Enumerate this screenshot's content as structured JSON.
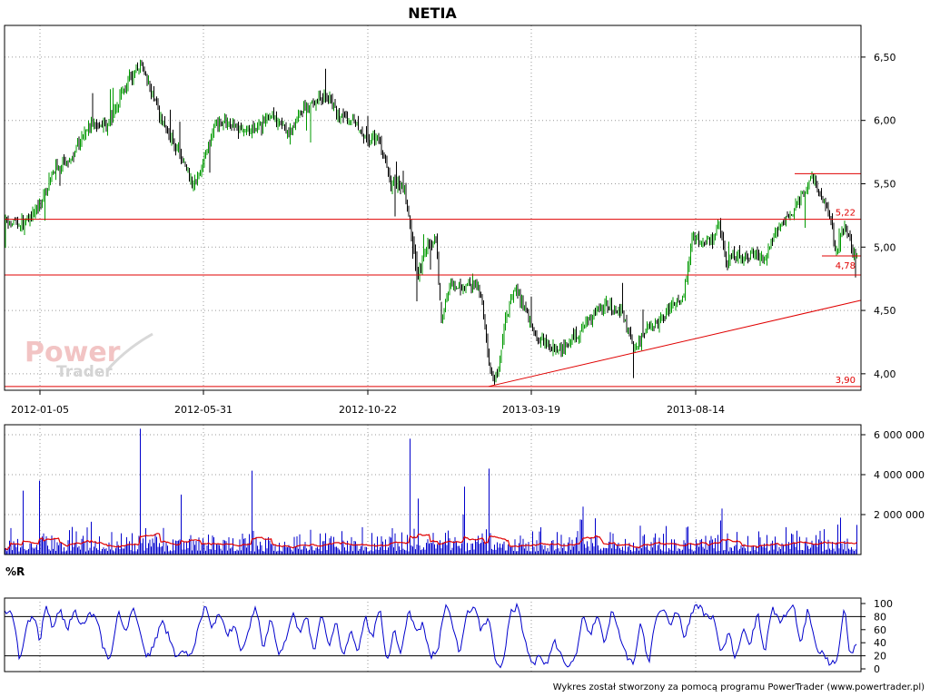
{
  "title": "NETIA",
  "footer": "Wykres został stworzony za pomocą programu PowerTrader (www.powertrader.pl)",
  "watermark": {
    "line1": "Power",
    "line2": "Trader"
  },
  "colors": {
    "candle_up": "#009900",
    "candle_down": "#000000",
    "line_red": "#e00000",
    "volume": "#0000cc",
    "volume_avg": "#e00000",
    "wr": "#0000cc"
  },
  "chart_data": [
    {
      "type": "candlestick",
      "title": "NETIA",
      "x_ticks": [
        "2012-01-05",
        "2012-05-31",
        "2012-10-22",
        "2013-03-19",
        "2013-08-14"
      ],
      "y_ticks": [
        "4,00",
        "4,50",
        "5,00",
        "5,50",
        "6,00",
        "6,50"
      ],
      "y_tick_values": [
        4.0,
        4.5,
        5.0,
        5.5,
        6.0,
        6.5
      ],
      "ylim": [
        3.87,
        6.75
      ],
      "grid": true,
      "close_path": [
        [
          0,
          5.15
        ],
        [
          8,
          5.2
        ],
        [
          22,
          5.18
        ],
        [
          42,
          5.3
        ],
        [
          60,
          5.62
        ],
        [
          80,
          5.72
        ],
        [
          100,
          5.98
        ],
        [
          118,
          5.96
        ],
        [
          140,
          6.3
        ],
        [
          155,
          6.45
        ],
        [
          165,
          6.25
        ],
        [
          178,
          6.02
        ],
        [
          200,
          5.7
        ],
        [
          212,
          5.5
        ],
        [
          220,
          5.58
        ],
        [
          236,
          5.95
        ],
        [
          250,
          6.0
        ],
        [
          268,
          5.9
        ],
        [
          285,
          5.95
        ],
        [
          300,
          6.05
        ],
        [
          318,
          5.9
        ],
        [
          335,
          6.1
        ],
        [
          350,
          6.15
        ],
        [
          362,
          6.2
        ],
        [
          372,
          6.05
        ],
        [
          390,
          6.0
        ],
        [
          405,
          5.85
        ],
        [
          418,
          5.85
        ],
        [
          430,
          5.5
        ],
        [
          445,
          5.48
        ],
        [
          453,
          5.1
        ],
        [
          460,
          4.75
        ],
        [
          468,
          5.0
        ],
        [
          480,
          5.05
        ],
        [
          486,
          4.4
        ],
        [
          495,
          4.7
        ],
        [
          510,
          4.68
        ],
        [
          522,
          4.72
        ],
        [
          530,
          4.6
        ],
        [
          540,
          4.0
        ],
        [
          548,
          3.97
        ],
        [
          556,
          4.4
        ],
        [
          567,
          4.7
        ],
        [
          578,
          4.5
        ],
        [
          590,
          4.3
        ],
        [
          605,
          4.22
        ],
        [
          620,
          4.2
        ],
        [
          635,
          4.3
        ],
        [
          652,
          4.45
        ],
        [
          668,
          4.55
        ],
        [
          683,
          4.5
        ],
        [
          700,
          4.2
        ],
        [
          712,
          4.35
        ],
        [
          725,
          4.4
        ],
        [
          740,
          4.55
        ],
        [
          752,
          4.6
        ],
        [
          762,
          5.05
        ],
        [
          775,
          5.05
        ],
        [
          785,
          5.05
        ],
        [
          792,
          5.2
        ],
        [
          800,
          4.85
        ],
        [
          808,
          4.95
        ],
        [
          818,
          4.9
        ],
        [
          830,
          4.95
        ],
        [
          842,
          4.9
        ],
        [
          855,
          5.15
        ],
        [
          870,
          5.25
        ],
        [
          882,
          5.4
        ],
        [
          895,
          5.55
        ],
        [
          905,
          5.4
        ],
        [
          915,
          5.2
        ],
        [
          920,
          4.95
        ],
        [
          930,
          5.18
        ],
        [
          940,
          4.95
        ]
      ],
      "lines": [
        {
          "type": "horizontal",
          "y": 5.22,
          "label": "5,22"
        },
        {
          "type": "horizontal",
          "y": 4.78,
          "label": "4,78"
        },
        {
          "type": "horizontal",
          "y": 3.9,
          "label": "3,90"
        },
        {
          "type": "segment",
          "y": 5.58,
          "x_from": 875,
          "x_to": 948
        },
        {
          "type": "segment",
          "y": 4.93,
          "x_from": 905,
          "x_to": 948
        },
        {
          "type": "trend",
          "from": [
            538,
            3.9
          ],
          "to": [
            948,
            4.58
          ]
        }
      ]
    },
    {
      "type": "bar",
      "title": "",
      "y_ticks": [
        "2 000 000",
        "4 000 000",
        "6 000 000"
      ],
      "y_tick_values": [
        2000000,
        4000000,
        6000000
      ],
      "ylim": [
        0,
        6500000
      ],
      "average_line": "red",
      "spikes": [
        {
          "x": 155,
          "v": 6300000
        },
        {
          "x": 452,
          "v": 5800000
        },
        {
          "x": 538,
          "v": 4300000
        },
        {
          "x": 278,
          "v": 4200000
        },
        {
          "x": 44,
          "v": 3700000
        },
        {
          "x": 200,
          "v": 3000000
        },
        {
          "x": 25,
          "v": 3200000
        },
        {
          "x": 512,
          "v": 3400000
        },
        {
          "x": 642,
          "v": 2400000
        },
        {
          "x": 795,
          "v": 2300000
        },
        {
          "x": 922,
          "v": 1500000
        },
        {
          "x": 460,
          "v": 2800000
        }
      ]
    },
    {
      "type": "line",
      "title": "%R",
      "y_ticks": [
        "0",
        "20",
        "40",
        "60",
        "80",
        "100"
      ],
      "y_tick_values": [
        0,
        20,
        40,
        60,
        80,
        100
      ],
      "ylim": [
        0,
        100
      ],
      "reference_lines": [
        20,
        80
      ],
      "series_path": [
        [
          0,
          82
        ],
        [
          8,
          90
        ],
        [
          16,
          74
        ],
        [
          22,
          8
        ],
        [
          30,
          70
        ],
        [
          38,
          80
        ],
        [
          44,
          40
        ],
        [
          50,
          98
        ],
        [
          58,
          62
        ],
        [
          66,
          94
        ],
        [
          74,
          58
        ],
        [
          82,
          92
        ],
        [
          90,
          64
        ],
        [
          98,
          86
        ],
        [
          106,
          82
        ],
        [
          114,
          30
        ],
        [
          122,
          12
        ],
        [
          130,
          92
        ],
        [
          138,
          52
        ],
        [
          146,
          96
        ],
        [
          154,
          60
        ],
        [
          162,
          16
        ],
        [
          170,
          40
        ],
        [
          178,
          72
        ],
        [
          186,
          50
        ],
        [
          194,
          18
        ],
        [
          202,
          30
        ],
        [
          210,
          18
        ],
        [
          218,
          58
        ],
        [
          226,
          98
        ],
        [
          234,
          62
        ],
        [
          242,
          88
        ],
        [
          250,
          46
        ],
        [
          258,
          72
        ],
        [
          266,
          24
        ],
        [
          274,
          62
        ],
        [
          282,
          96
        ],
        [
          290,
          32
        ],
        [
          298,
          80
        ],
        [
          306,
          22
        ],
        [
          314,
          40
        ],
        [
          322,
          86
        ],
        [
          330,
          56
        ],
        [
          338,
          80
        ],
        [
          346,
          22
        ],
        [
          354,
          84
        ],
        [
          362,
          34
        ],
        [
          370,
          74
        ],
        [
          378,
          14
        ],
        [
          386,
          62
        ],
        [
          394,
          24
        ],
        [
          402,
          84
        ],
        [
          410,
          44
        ],
        [
          418,
          96
        ],
        [
          426,
          6
        ],
        [
          434,
          60
        ],
        [
          442,
          24
        ],
        [
          450,
          92
        ],
        [
          458,
          56
        ],
        [
          466,
          70
        ],
        [
          474,
          18
        ],
        [
          482,
          28
        ],
        [
          490,
          98
        ],
        [
          498,
          72
        ],
        [
          506,
          20
        ],
        [
          514,
          88
        ],
        [
          522,
          96
        ],
        [
          530,
          58
        ],
        [
          538,
          78
        ],
        [
          546,
          8
        ],
        [
          554,
          6
        ],
        [
          562,
          86
        ],
        [
          570,
          96
        ],
        [
          578,
          42
        ],
        [
          586,
          6
        ],
        [
          594,
          18
        ],
        [
          602,
          4
        ],
        [
          610,
          46
        ],
        [
          618,
          18
        ],
        [
          626,
          4
        ],
        [
          634,
          20
        ],
        [
          642,
          84
        ],
        [
          650,
          50
        ],
        [
          658,
          88
        ],
        [
          666,
          34
        ],
        [
          674,
          96
        ],
        [
          682,
          52
        ],
        [
          690,
          18
        ],
        [
          698,
          10
        ],
        [
          706,
          74
        ],
        [
          714,
          4
        ],
        [
          722,
          78
        ],
        [
          730,
          96
        ],
        [
          738,
          64
        ],
        [
          746,
          92
        ],
        [
          754,
          44
        ],
        [
          762,
          90
        ],
        [
          770,
          96
        ],
        [
          778,
          78
        ],
        [
          786,
          80
        ],
        [
          794,
          20
        ],
        [
          802,
          58
        ],
        [
          810,
          14
        ],
        [
          818,
          64
        ],
        [
          826,
          34
        ],
        [
          834,
          88
        ],
        [
          842,
          24
        ],
        [
          850,
          96
        ],
        [
          858,
          74
        ],
        [
          866,
          84
        ],
        [
          874,
          96
        ],
        [
          882,
          36
        ],
        [
          890,
          96
        ],
        [
          898,
          34
        ],
        [
          906,
          22
        ],
        [
          914,
          8
        ],
        [
          922,
          16
        ],
        [
          930,
          96
        ],
        [
          936,
          18
        ],
        [
          942,
          40
        ]
      ]
    }
  ]
}
